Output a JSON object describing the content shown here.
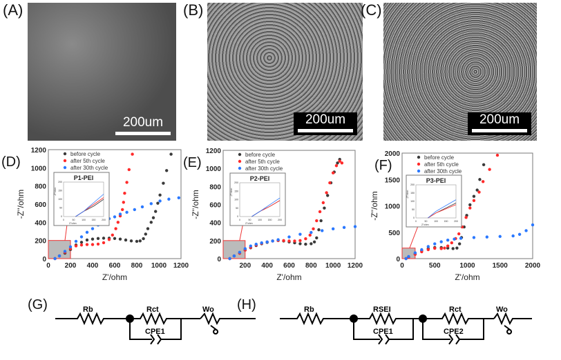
{
  "panels": {
    "A": {
      "label": "(A)",
      "scale": "200um"
    },
    "B": {
      "label": "(B)",
      "scale": "200um"
    },
    "C": {
      "label": "(C)",
      "scale": "200um"
    },
    "G": {
      "label": "(G)"
    },
    "H": {
      "label": "(H)"
    }
  },
  "circuits": {
    "G": {
      "Rb": "Rb",
      "Rct": "Rct",
      "Wo": "Wo",
      "CPE1": "CPE1"
    },
    "H": {
      "Rb": "Rb",
      "RSEI": "RSEI",
      "Rct": "Rct",
      "Wo": "Wo",
      "CPE1": "CPE1",
      "CPE2": "CPE2"
    }
  },
  "colors": {
    "before": "#3a3a3a",
    "after5": "#ff2a2a",
    "after30": "#2a78ff"
  },
  "chart_data": [
    {
      "type": "scatter",
      "panel": "(D)",
      "xlabel": "Z'/ohm",
      "ylabel": "-Z''/ohm",
      "xlim": [
        0,
        1200
      ],
      "ylim": [
        0,
        1200
      ],
      "xticks": [
        "0",
        "200",
        "400",
        "600",
        "800",
        "1000",
        "1200"
      ],
      "yticks": [
        "0",
        "200",
        "400",
        "600",
        "800",
        "1000",
        "1200"
      ],
      "legend": "top-left",
      "inset": {
        "title": "P1-PEI",
        "xlabel": "Z'/ohm",
        "ylabel": "-Z''/ohm",
        "xticks": [
          "0",
          "50",
          "100",
          "150",
          "200"
        ],
        "yticks": [
          "0",
          "50",
          "100",
          "150",
          "200"
        ]
      },
      "series": [
        {
          "name": "before cycle",
          "x": [
            60,
            100,
            150,
            200,
            250,
            300,
            350,
            400,
            450,
            500,
            550,
            600,
            650,
            700,
            750,
            800,
            830,
            860,
            880,
            900,
            930,
            950,
            970,
            990,
            1010,
            1040,
            1070,
            1110
          ],
          "y": [
            0,
            30,
            60,
            100,
            150,
            180,
            205,
            215,
            222,
            225,
            225,
            222,
            215,
            205,
            195,
            190,
            195,
            220,
            270,
            330,
            400,
            450,
            520,
            610,
            700,
            830,
            970,
            1150
          ]
        },
        {
          "name": "after 5th cycle",
          "x": [
            60,
            100,
            150,
            200,
            250,
            300,
            350,
            400,
            450,
            500,
            550,
            580,
            610,
            630,
            650,
            670,
            680,
            690,
            710,
            730,
            760
          ],
          "y": [
            0,
            30,
            70,
            110,
            140,
            150,
            155,
            155,
            160,
            175,
            210,
            260,
            330,
            400,
            470,
            540,
            620,
            720,
            840,
            980,
            1150
          ]
        },
        {
          "name": "after 30th cycle",
          "x": [
            60,
            100,
            150,
            200,
            250,
            300,
            350,
            400,
            450,
            500,
            550,
            600,
            650,
            710,
            780,
            850,
            930,
            1010,
            1090,
            1180
          ],
          "y": [
            0,
            30,
            80,
            130,
            190,
            240,
            290,
            330,
            370,
            400,
            440,
            460,
            490,
            510,
            540,
            570,
            605,
            635,
            655,
            670
          ]
        }
      ]
    },
    {
      "type": "scatter",
      "panel": "(E)",
      "xlabel": "Z'/ohm",
      "ylabel": "-Z''/ohm",
      "xlim": [
        0,
        1200
      ],
      "ylim": [
        0,
        1200
      ],
      "xticks": [
        "",
        "200",
        "400",
        "600",
        "800",
        "1000",
        "1200"
      ],
      "yticks": [
        "0",
        "200",
        "400",
        "600",
        "800",
        "1000",
        "1200"
      ],
      "legend": "top-left",
      "inset": {
        "title": "P2-PEI",
        "xlabel": "Z'/ohm",
        "ylabel": "-Z''/ohm",
        "xticks": [
          "0",
          "50",
          "100",
          "150",
          "200"
        ],
        "yticks": [
          "0",
          "50",
          "100",
          "150",
          "200"
        ]
      },
      "series": [
        {
          "name": "before cycle",
          "x": [
            60,
            100,
            150,
            200,
            250,
            300,
            350,
            400,
            450,
            500,
            550,
            600,
            650,
            700,
            750,
            800,
            830,
            850,
            870,
            890,
            920,
            950,
            980,
            1010,
            1040,
            1060
          ],
          "y": [
            0,
            30,
            60,
            95,
            120,
            145,
            165,
            180,
            195,
            200,
            195,
            185,
            175,
            165,
            160,
            165,
            185,
            230,
            320,
            420,
            560,
            700,
            840,
            960,
            1060,
            1100
          ]
        },
        {
          "name": "after 5th cycle",
          "x": [
            60,
            100,
            150,
            200,
            250,
            300,
            350,
            400,
            450,
            500,
            550,
            600,
            650,
            700,
            750,
            790,
            820,
            850,
            880,
            910,
            940,
            970,
            1000,
            1030,
            1060,
            1080
          ],
          "y": [
            0,
            30,
            60,
            95,
            125,
            150,
            170,
            185,
            195,
            200,
            200,
            195,
            195,
            200,
            220,
            260,
            330,
            420,
            520,
            620,
            730,
            840,
            950,
            1030,
            1080,
            1060
          ]
        },
        {
          "name": "after 30th cycle",
          "x": [
            60,
            100,
            150,
            200,
            250,
            300,
            350,
            400,
            450,
            500,
            600,
            700,
            800,
            900,
            1000,
            1100,
            1200
          ],
          "y": [
            0,
            30,
            70,
            110,
            140,
            160,
            175,
            185,
            195,
            210,
            240,
            270,
            290,
            310,
            330,
            345,
            355
          ]
        }
      ]
    },
    {
      "type": "scatter",
      "panel": "(F)",
      "xlabel": "Z'/ohm",
      "ylabel": "-Z''/ohm",
      "xlim": [
        0,
        2000
      ],
      "ylim": [
        0,
        2000
      ],
      "xticks": [
        "0",
        "500",
        "1000",
        "1500",
        "2000"
      ],
      "yticks": [
        "0",
        "500",
        "1000",
        "1500",
        "2000"
      ],
      "legend": "top-left",
      "inset": {
        "title": "P3-PEI",
        "xlabel": "Z'/ohm",
        "ylabel": "-Z''/ohm",
        "xticks": [
          "0",
          "50",
          "100",
          "150",
          "200"
        ],
        "yticks": [
          "0",
          "50",
          "100",
          "150",
          "200"
        ]
      },
      "series": [
        {
          "name": "before cycle",
          "x": [
            60,
            100,
            200,
            300,
            400,
            500,
            600,
            700,
            780,
            840,
            880,
            910,
            950,
            990,
            1040,
            1100,
            1150,
            1190,
            1250
          ],
          "y": [
            0,
            30,
            90,
            150,
            190,
            210,
            210,
            200,
            190,
            200,
            280,
            400,
            600,
            820,
            1020,
            1180,
            1300,
            1500,
            1780
          ]
        },
        {
          "name": "after 5th cycle",
          "x": [
            60,
            100,
            200,
            300,
            400,
            500,
            600,
            650,
            700,
            760,
            820,
            870,
            920,
            980,
            1040,
            1100,
            1180,
            1240,
            1340,
            1460
          ],
          "y": [
            0,
            30,
            80,
            130,
            170,
            195,
            190,
            200,
            240,
            300,
            380,
            470,
            600,
            780,
            960,
            1100,
            1260,
            1460,
            1690,
            1960
          ]
        },
        {
          "name": "after 30th cycle",
          "x": [
            60,
            100,
            200,
            300,
            400,
            500,
            600,
            700,
            800,
            900,
            1100,
            1300,
            1500,
            1700,
            1800,
            1900,
            2000
          ],
          "y": [
            0,
            40,
            110,
            170,
            230,
            280,
            320,
            350,
            370,
            385,
            400,
            410,
            420,
            430,
            460,
            530,
            640
          ]
        }
      ]
    }
  ]
}
